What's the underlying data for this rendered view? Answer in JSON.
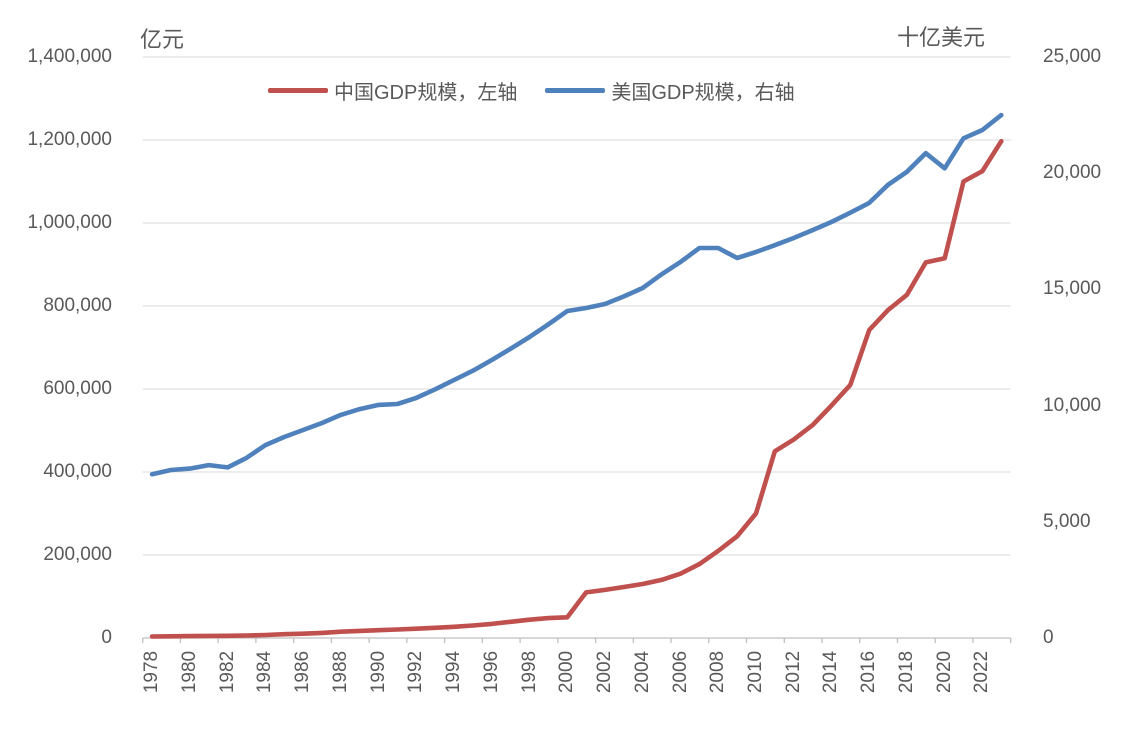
{
  "chart": {
    "unit_left": "亿元",
    "unit_right": "十亿美元",
    "legend": [
      {
        "label": "中国GDP规模，左轴",
        "color": "#C0504D"
      },
      {
        "label": "美国GDP规模，右轴",
        "color": "#4F81BD"
      }
    ]
  },
  "chart_data": {
    "type": "line",
    "title": "",
    "x": [
      1978,
      1979,
      1980,
      1981,
      1982,
      1983,
      1984,
      1985,
      1986,
      1987,
      1988,
      1989,
      1990,
      1991,
      1992,
      1993,
      1994,
      1995,
      1996,
      1997,
      1998,
      1999,
      2000,
      2001,
      2002,
      2003,
      2004,
      2005,
      2006,
      2007,
      2008,
      2009,
      2010,
      2011,
      2012,
      2013,
      2014,
      2015,
      2016,
      2017,
      2018,
      2019,
      2020,
      2021,
      2022,
      2023
    ],
    "x_tick_labels": [
      "1978",
      "1980",
      "1982",
      "1984",
      "1986",
      "1988",
      "1990",
      "1992",
      "1994",
      "1996",
      "1998",
      "2000",
      "2002",
      "2004",
      "2006",
      "2008",
      "2010",
      "2012",
      "2014",
      "2016",
      "2018",
      "2020",
      "2022"
    ],
    "series": [
      {
        "name": "中国GDP规模，左轴",
        "axis": "left",
        "color": "#C0504D",
        "values": [
          3700,
          4100,
          4600,
          5000,
          5400,
          6000,
          7300,
          9100,
          10400,
          12200,
          15200,
          17200,
          18900,
          20500,
          22500,
          24500,
          27000,
          30000,
          34000,
          39000,
          44000,
          48000,
          50000,
          110000,
          116000,
          123000,
          130000,
          140000,
          155000,
          178000,
          210000,
          245000,
          300000,
          450000,
          478000,
          513000,
          560000,
          610000,
          742000,
          790000,
          827000,
          905000,
          915000,
          1100000,
          1125000,
          1197000
        ]
      },
      {
        "name": "美国GDP规模，右轴",
        "axis": "right",
        "color": "#4F81BD",
        "values": [
          7050,
          7230,
          7290,
          7440,
          7340,
          7750,
          8300,
          8650,
          8950,
          9250,
          9600,
          9850,
          10030,
          10070,
          10330,
          10700,
          11100,
          11500,
          11960,
          12450,
          12950,
          13500,
          14070,
          14200,
          14370,
          14700,
          15060,
          15650,
          16180,
          16780,
          16780,
          16350,
          16610,
          16900,
          17210,
          17550,
          17900,
          18300,
          18720,
          19500,
          20060,
          20860,
          20210,
          21500,
          21860,
          22500
        ]
      }
    ],
    "left_axis": {
      "label": "亿元",
      "min": 0,
      "max": 1400000,
      "tick_step": 200000,
      "tick_labels": [
        "0",
        "200,000",
        "400,000",
        "600,000",
        "800,000",
        "1,000,000",
        "1,200,000",
        "1,400,000"
      ]
    },
    "right_axis": {
      "label": "十亿美元",
      "min": 0,
      "max": 25000,
      "tick_step": 5000,
      "tick_labels": [
        "0",
        "5,000",
        "10,000",
        "15,000",
        "20,000",
        "25,000"
      ]
    },
    "grid": true,
    "legend_position": "top",
    "colors": {
      "gridline": "#D9D9D9",
      "axis": "#BFBFBF",
      "text": "#595959"
    }
  }
}
